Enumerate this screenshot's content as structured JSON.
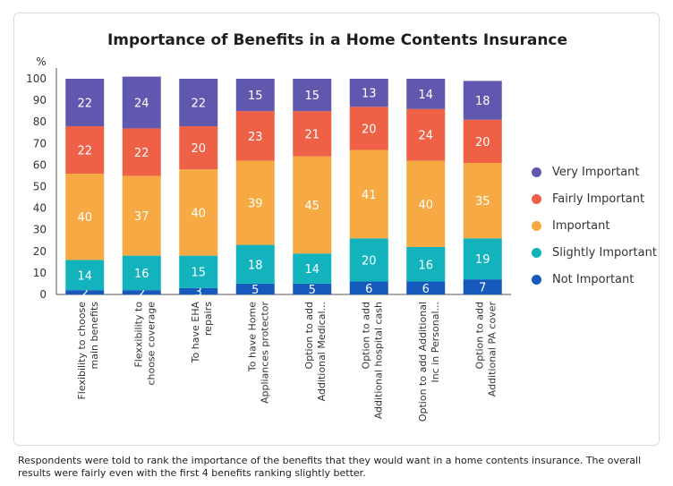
{
  "footnote": "Respondents were told to rank the importance of the benefits that they would want in a home contents insurance. The overall results were fairly even with the first 4 benefits ranking slightly better.",
  "colors": {
    "Very Important": "#6058ae",
    "Fairly Important": "#ee6147",
    "Important": "#f7aa43",
    "Slightly Important": "#12b3bd",
    "Not Important": "#1659bd"
  },
  "chart_data": {
    "type": "bar",
    "stacked": true,
    "title": "Importance of Benefits in a Home Contents Insurance",
    "ylabel": "%",
    "ylim": [
      0,
      100
    ],
    "yticks": [
      0,
      10,
      20,
      30,
      40,
      50,
      60,
      70,
      80,
      90,
      100
    ],
    "legend_position": "right",
    "categories": [
      [
        "Flexibility to choose",
        "main benefits"
      ],
      [
        "Flexxibility to",
        "choose coverage"
      ],
      [
        "To have EHA",
        "repairs"
      ],
      [
        "To have Home",
        "Appliances protector"
      ],
      [
        "Option to add",
        "Additional Medical..."
      ],
      [
        "Option to add",
        "Additional hospital cash"
      ],
      [
        "Option to add Additional",
        "Inc in Personal..."
      ],
      [
        "Option to add",
        "Additional PA cover"
      ]
    ],
    "series": [
      {
        "name": "Not Important",
        "values": [
          2,
          2,
          3,
          5,
          5,
          6,
          6,
          7
        ]
      },
      {
        "name": "Slightly Important",
        "values": [
          14,
          16,
          15,
          18,
          14,
          20,
          16,
          19
        ]
      },
      {
        "name": "Important",
        "values": [
          40,
          37,
          40,
          39,
          45,
          41,
          40,
          35
        ]
      },
      {
        "name": "Fairly Important",
        "values": [
          22,
          22,
          20,
          23,
          21,
          20,
          24,
          20
        ]
      },
      {
        "name": "Very Important",
        "values": [
          22,
          24,
          22,
          15,
          15,
          13,
          14,
          18
        ]
      }
    ],
    "legend_order": [
      "Very Important",
      "Fairly Important",
      "Important",
      "Slightly Important",
      "Not Important"
    ]
  }
}
